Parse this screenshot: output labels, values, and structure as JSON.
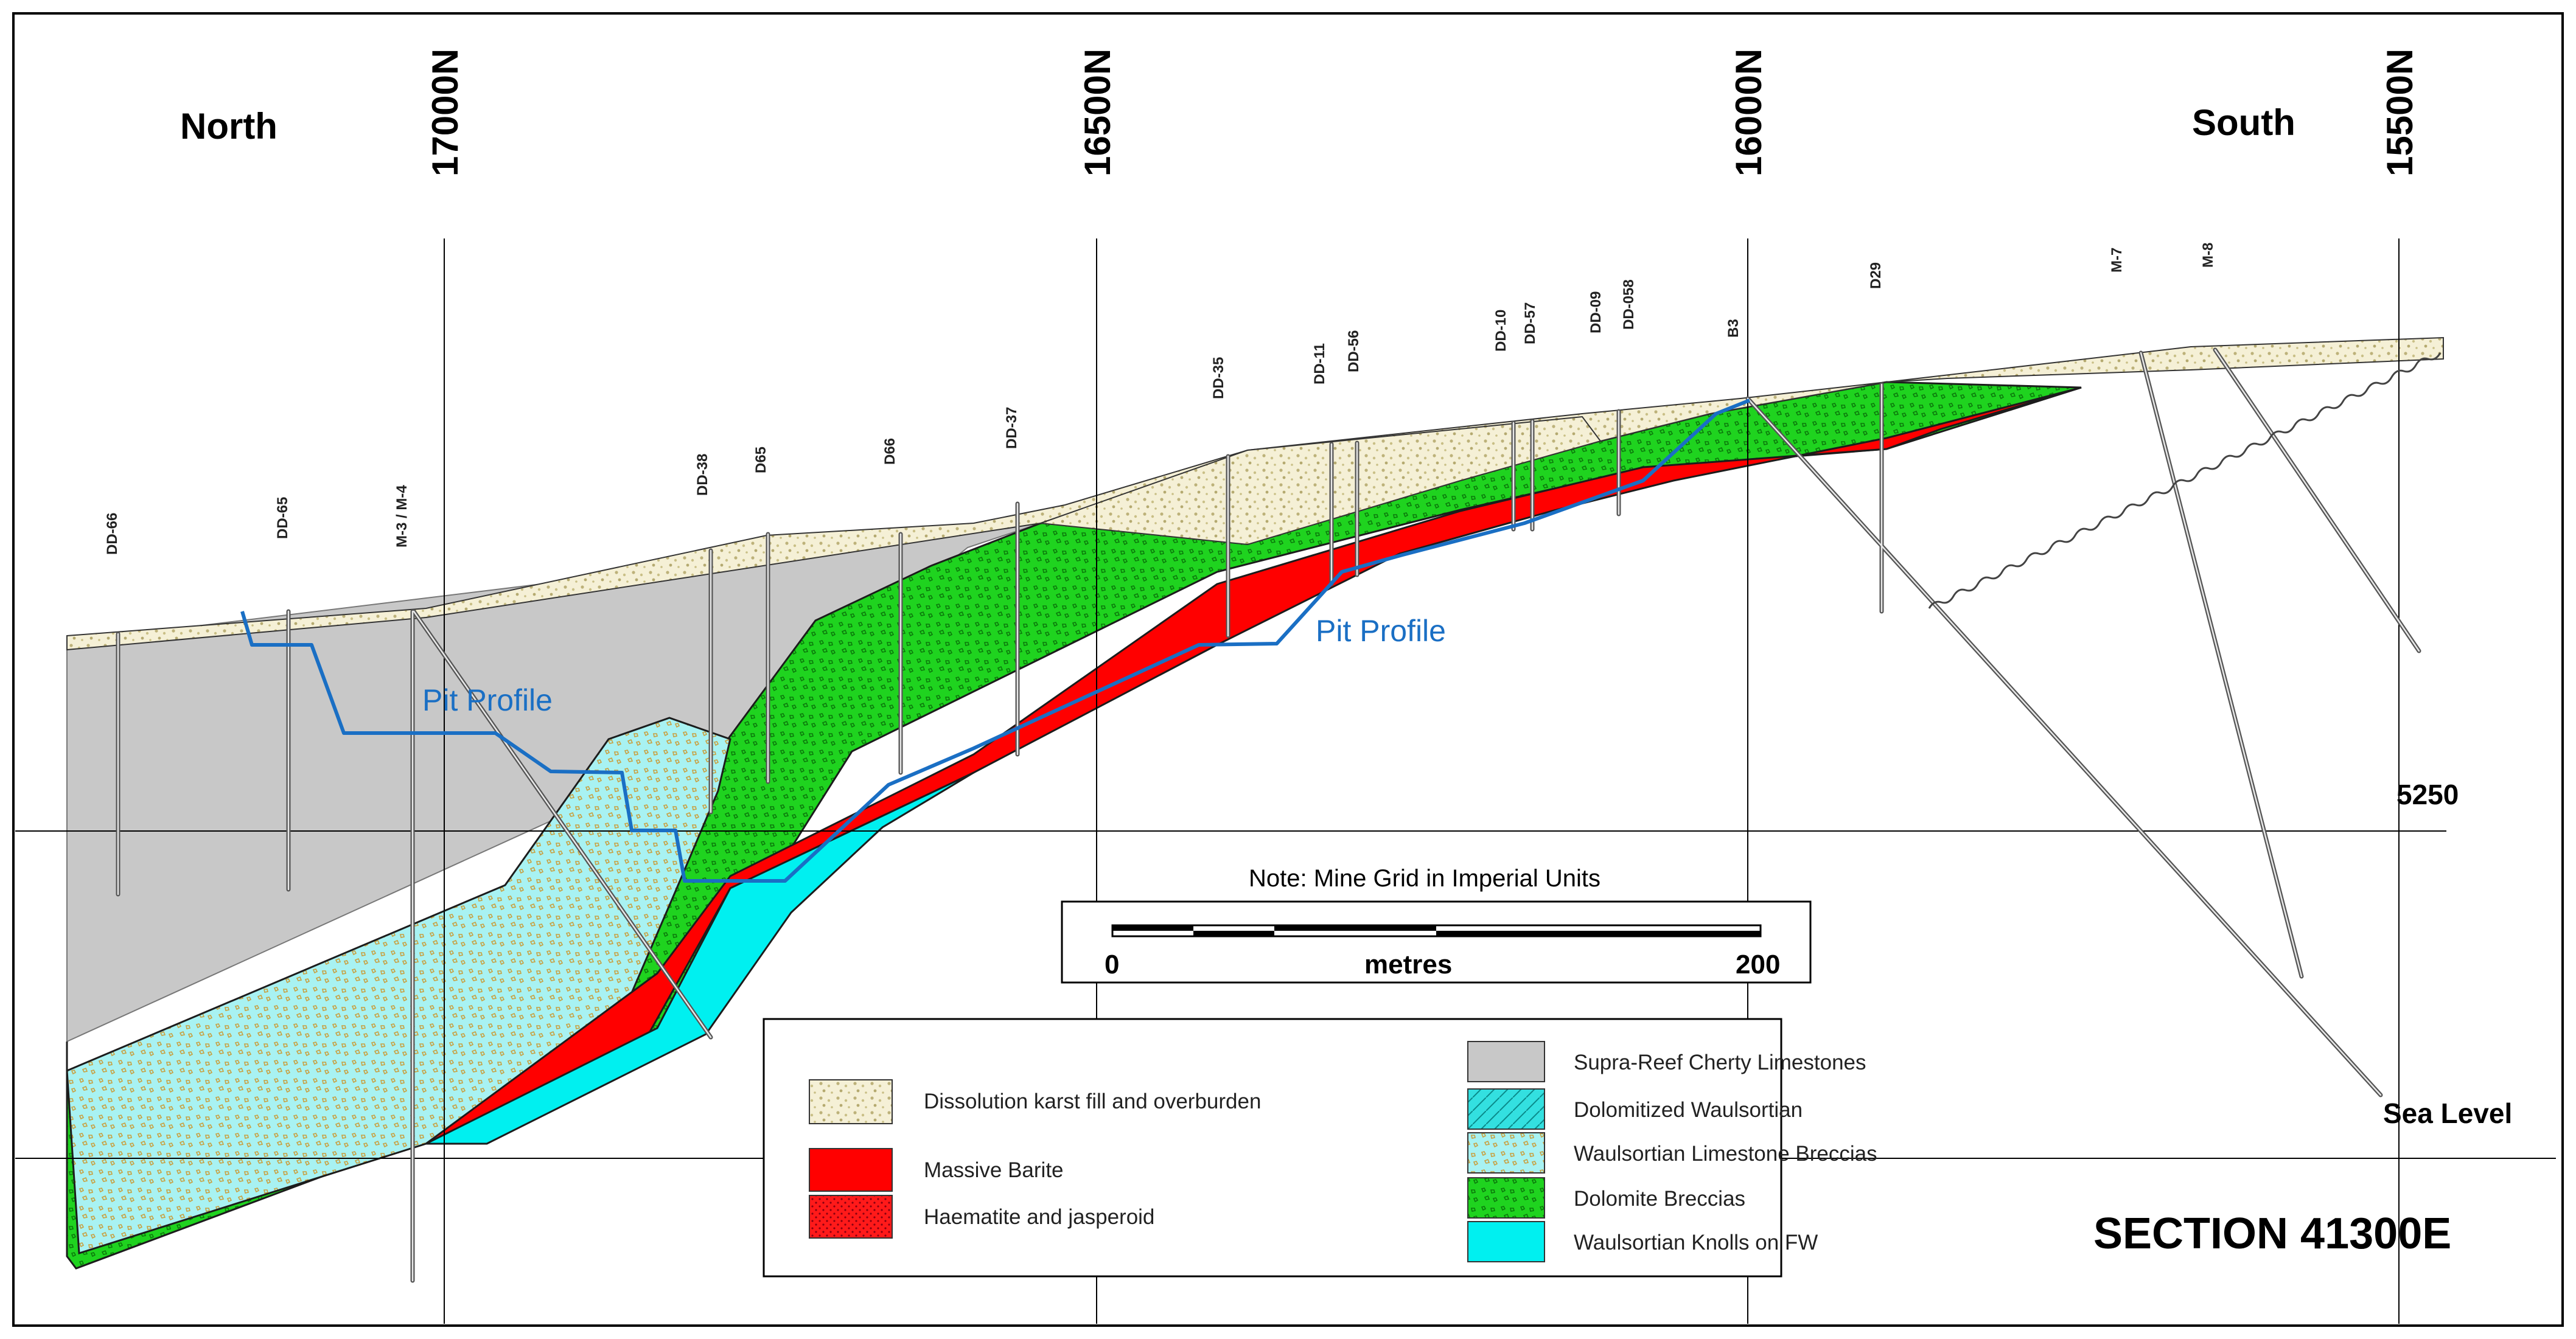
{
  "section_title": "SECTION  41300E",
  "directions": {
    "left": "North",
    "right": "South"
  },
  "grid_lines": [
    "17000N",
    "16500N",
    "16000N",
    "15500N"
  ],
  "elevations": {
    "upper": "5250",
    "lower": "Sea Level"
  },
  "drill_holes": [
    "DD-66",
    "DD-65",
    "M-3 / M-4",
    "DD-38",
    "D65",
    "D66",
    "DD-37",
    "DD-35",
    "DD-11",
    "DD-56",
    "DD-10",
    "DD-57",
    "DD-09",
    "DD-058",
    "B3",
    "D29",
    "M-7",
    "M-8"
  ],
  "pit_profile_label": "Pit Profile",
  "note": "Note:  Mine Grid in Imperial Units",
  "scale": {
    "start": "0",
    "unit": "metres",
    "end": "200"
  },
  "legend": {
    "left": [
      {
        "label": "Dissolution karst fill and overburden",
        "pattern": "karst",
        "color": "#f5f0d6"
      },
      {
        "label": "Massive Barite",
        "pattern": "solid",
        "color": "#ff0000"
      },
      {
        "label": "Haematite and jasperoid",
        "pattern": "dots",
        "color": "#e0002a"
      }
    ],
    "right": [
      {
        "label": "Supra-Reef Cherty Limestones",
        "pattern": "solid",
        "color": "#c8c8c8"
      },
      {
        "label": "Dolomitized Waulsortian",
        "pattern": "hatch",
        "color": "#33e0e0"
      },
      {
        "label": "Waulsortian Limestone Breccias",
        "pattern": "breccia-cyan",
        "color": "#a8f2f2"
      },
      {
        "label": "Dolomite Breccias",
        "pattern": "breccia-green",
        "color": "#1fd31f"
      },
      {
        "label": "Waulsortian Knolls on FW",
        "pattern": "solid",
        "color": "#00f0f0"
      }
    ]
  }
}
